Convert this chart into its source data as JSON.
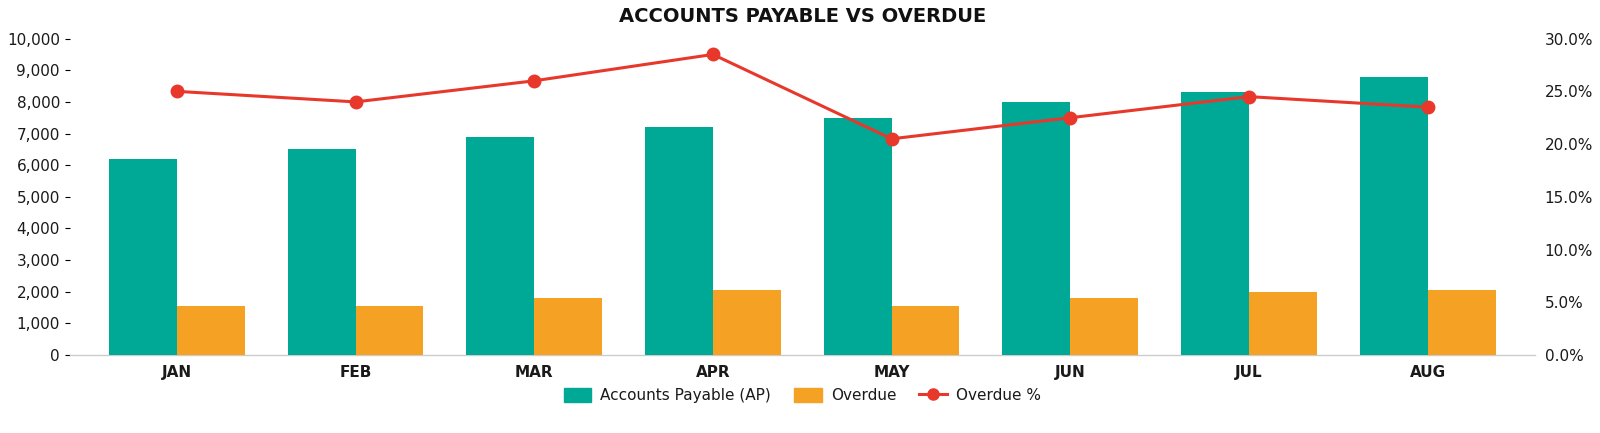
{
  "title": "ACCOUNTS PAYABLE VS OVERDUE",
  "months": [
    "JAN",
    "FEB",
    "MAR",
    "APR",
    "MAY",
    "JUN",
    "JUL",
    "AUG"
  ],
  "ap_values": [
    6200,
    6500,
    6900,
    7200,
    7500,
    8000,
    8300,
    8800
  ],
  "overdue_values": [
    1550,
    1550,
    1800,
    2050,
    1550,
    1800,
    2000,
    2050
  ],
  "overdue_pct": [
    0.25,
    0.24,
    0.26,
    0.285,
    0.205,
    0.225,
    0.245,
    0.235
  ],
  "ap_color": "#00A896",
  "overdue_color": "#F4A124",
  "line_color": "#E8382B",
  "background_color": "#FFFFFF",
  "title_fontsize": 14,
  "tick_fontsize": 11,
  "legend_fontsize": 11,
  "ylim_left": [
    0,
    10000
  ],
  "ylim_right": [
    0,
    0.3
  ],
  "yticks_left": [
    0,
    1000,
    2000,
    3000,
    4000,
    5000,
    6000,
    7000,
    8000,
    9000,
    10000
  ],
  "yticks_right": [
    0.0,
    0.05,
    0.1,
    0.15,
    0.2,
    0.25,
    0.3
  ],
  "bar_width": 0.38,
  "legend_labels": [
    "Accounts Payable (AP)",
    "Overdue",
    "Overdue %"
  ]
}
